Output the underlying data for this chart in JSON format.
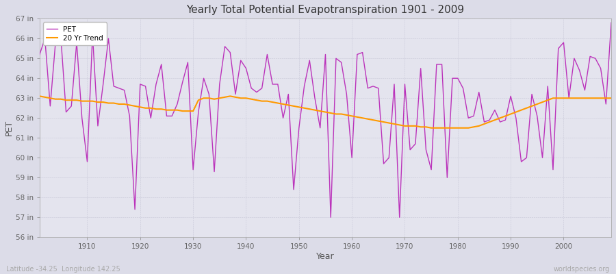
{
  "title": "Yearly Total Potential Evapotranspiration 1901 - 2009",
  "xlabel": "Year",
  "ylabel": "PET",
  "subtitle_left": "Latitude -34.25  Longitude 142.25",
  "subtitle_right": "worldspecies.org",
  "pet_color": "#bb33bb",
  "trend_color": "#ff9900",
  "background_color": "#dcdce8",
  "plot_bg_color": "#e4e4ee",
  "ylim": [
    56,
    67
  ],
  "years": [
    1901,
    1902,
    1903,
    1904,
    1905,
    1906,
    1907,
    1908,
    1909,
    1910,
    1911,
    1912,
    1913,
    1914,
    1915,
    1916,
    1917,
    1918,
    1919,
    1920,
    1921,
    1922,
    1923,
    1924,
    1925,
    1926,
    1927,
    1928,
    1929,
    1930,
    1931,
    1932,
    1933,
    1934,
    1935,
    1936,
    1937,
    1938,
    1939,
    1940,
    1941,
    1942,
    1943,
    1944,
    1945,
    1946,
    1947,
    1948,
    1949,
    1950,
    1951,
    1952,
    1953,
    1954,
    1955,
    1956,
    1957,
    1958,
    1959,
    1960,
    1961,
    1962,
    1963,
    1964,
    1965,
    1966,
    1967,
    1968,
    1969,
    1970,
    1971,
    1972,
    1973,
    1974,
    1975,
    1976,
    1977,
    1978,
    1979,
    1980,
    1981,
    1982,
    1983,
    1984,
    1985,
    1986,
    1987,
    1988,
    1989,
    1990,
    1991,
    1992,
    1993,
    1994,
    1995,
    1996,
    1997,
    1998,
    1999,
    2000,
    2001,
    2002,
    2003,
    2004,
    2005,
    2006,
    2007,
    2008,
    2009
  ],
  "pet_values": [
    65.2,
    66.0,
    62.6,
    65.8,
    66.1,
    62.3,
    62.6,
    65.8,
    62.0,
    59.8,
    66.2,
    61.6,
    63.7,
    66.0,
    63.6,
    63.5,
    63.4,
    62.1,
    57.4,
    63.7,
    63.6,
    62.0,
    63.7,
    64.7,
    62.1,
    62.1,
    62.7,
    63.8,
    64.8,
    59.4,
    62.3,
    64.0,
    63.2,
    59.3,
    63.7,
    65.6,
    65.3,
    63.2,
    64.9,
    64.5,
    63.5,
    63.3,
    63.5,
    65.2,
    63.7,
    63.7,
    62.0,
    63.2,
    58.4,
    61.5,
    63.6,
    64.9,
    63.0,
    61.5,
    65.2,
    57.0,
    65.0,
    64.8,
    63.2,
    60.0,
    65.2,
    65.3,
    63.5,
    63.6,
    63.5,
    59.7,
    60.0,
    63.7,
    57.0,
    63.7,
    60.4,
    60.7,
    64.5,
    60.4,
    59.4,
    64.7,
    64.7,
    59.0,
    64.0,
    64.0,
    63.5,
    62.0,
    62.1,
    63.3,
    61.8,
    61.9,
    62.4,
    61.8,
    61.9,
    63.1,
    62.0,
    59.8,
    60.0,
    63.2,
    62.1,
    60.0,
    63.6,
    59.4,
    65.5,
    65.8,
    63.0,
    65.0,
    64.4,
    63.4,
    65.1,
    65.0,
    64.5,
    62.7,
    66.8
  ],
  "trend_values": [
    63.1,
    63.05,
    63.0,
    62.95,
    62.95,
    62.9,
    62.9,
    62.9,
    62.85,
    62.85,
    62.85,
    62.8,
    62.8,
    62.75,
    62.75,
    62.7,
    62.7,
    62.65,
    62.6,
    62.55,
    62.5,
    62.5,
    62.45,
    62.45,
    62.4,
    62.4,
    62.4,
    62.35,
    62.35,
    62.35,
    62.9,
    63.0,
    63.0,
    62.95,
    63.0,
    63.05,
    63.1,
    63.05,
    63.0,
    63.0,
    62.95,
    62.9,
    62.85,
    62.85,
    62.8,
    62.75,
    62.7,
    62.65,
    62.6,
    62.55,
    62.5,
    62.45,
    62.4,
    62.35,
    62.3,
    62.25,
    62.2,
    62.2,
    62.15,
    62.1,
    62.05,
    62.0,
    61.95,
    61.9,
    61.85,
    61.8,
    61.75,
    61.7,
    61.65,
    61.6,
    61.6,
    61.6,
    61.55,
    61.55,
    61.5,
    61.5,
    61.5,
    61.5,
    61.5,
    61.5,
    61.5,
    61.5,
    61.55,
    61.6,
    61.7,
    61.8,
    61.9,
    62.0,
    62.1,
    62.2,
    62.3,
    62.4,
    62.5,
    62.6,
    62.7,
    62.8,
    62.9,
    63.0,
    63.0,
    63.0,
    63.0,
    63.0,
    63.0,
    63.0,
    63.0,
    63.0,
    63.0,
    63.0,
    63.0
  ],
  "xticks": [
    1910,
    1920,
    1930,
    1940,
    1950,
    1960,
    1970,
    1980,
    1990,
    2000
  ],
  "legend_pet_label": "PET",
  "legend_trend_label": "20 Yr Trend"
}
